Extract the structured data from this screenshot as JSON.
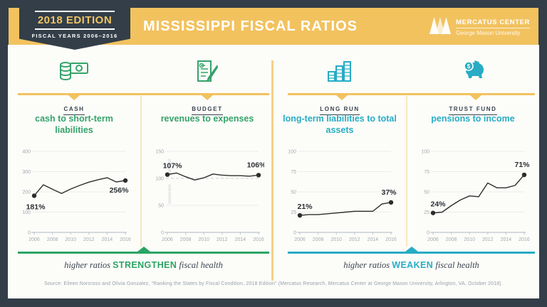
{
  "header": {
    "edition_badge": {
      "title": "2018 EDITION",
      "subtitle": "FISCAL YEARS 2006–2016"
    },
    "title": "MISSISSIPPI FISCAL RATIOS",
    "logo": {
      "name": "MERCATUS CENTER",
      "org": "George Mason University"
    }
  },
  "panels": [
    {
      "icon": "cash-coins-icon",
      "category": "CASH",
      "subtitle": "cash to short-term liabilities",
      "accent": "#35A36B"
    },
    {
      "icon": "budget-document-icon",
      "category": "BUDGET",
      "subtitle": "revenues to expenses",
      "accent": "#35A36B"
    },
    {
      "icon": "long-run-stacks-icon",
      "category": "LONG RUN",
      "subtitle": "long-term liabilities to total assets",
      "accent": "#27ACC4"
    },
    {
      "icon": "piggy-bank-icon",
      "category": "TRUST FUND",
      "subtitle": "pensions to income",
      "accent": "#27ACC4"
    }
  ],
  "chart_data": [
    {
      "type": "line",
      "title": "cash to short-term liabilities",
      "x": [
        2006,
        2007,
        2008,
        2009,
        2010,
        2011,
        2012,
        2013,
        2014,
        2015,
        2016
      ],
      "values": [
        181,
        235,
        213,
        192,
        214,
        232,
        248,
        260,
        270,
        249,
        256
      ],
      "ylim": [
        0,
        400
      ],
      "yticks": [
        0,
        100,
        200,
        300,
        400
      ],
      "xticks": [
        2006,
        2008,
        2010,
        2012,
        2014,
        2016
      ],
      "grid": true,
      "start_label": {
        "text": "181%",
        "position": "below"
      },
      "end_label": {
        "text": "256%",
        "position": "below"
      }
    },
    {
      "type": "line",
      "title": "revenues to expenses",
      "x": [
        2006,
        2007,
        2008,
        2009,
        2010,
        2011,
        2012,
        2013,
        2014,
        2015,
        2016
      ],
      "values": [
        107,
        110,
        103,
        97,
        101,
        108,
        106,
        105,
        105,
        104,
        106
      ],
      "ylim": [
        0,
        150
      ],
      "yticks": [
        0,
        50,
        100,
        150
      ],
      "xticks": [
        2006,
        2008,
        2010,
        2012,
        2014,
        2016
      ],
      "grid": true,
      "reference_line": {
        "value": 100,
        "style": "dashed",
        "label_above": "solvent",
        "label_below": "insolvent"
      },
      "start_label": {
        "text": "107%",
        "position": "above"
      },
      "end_label": {
        "text": "106%",
        "position": "above"
      }
    },
    {
      "type": "line",
      "title": "long-term liabilities to total assets",
      "x": [
        2006,
        2007,
        2008,
        2009,
        2010,
        2011,
        2012,
        2013,
        2014,
        2015,
        2016
      ],
      "values": [
        21,
        22,
        22,
        23,
        24,
        25,
        26,
        26,
        26,
        35,
        37
      ],
      "ylim": [
        0,
        100
      ],
      "yticks": [
        0,
        25,
        50,
        75,
        100
      ],
      "xticks": [
        2006,
        2008,
        2010,
        2012,
        2014,
        2016
      ],
      "grid": true,
      "start_label": {
        "text": "21%",
        "position": "above"
      },
      "end_label": {
        "text": "37%",
        "position": "above"
      }
    },
    {
      "type": "line",
      "title": "pensions to income",
      "x": [
        2006,
        2007,
        2008,
        2009,
        2010,
        2011,
        2012,
        2013,
        2014,
        2015,
        2016
      ],
      "values": [
        24,
        25,
        33,
        40,
        45,
        44,
        61,
        55,
        55,
        58,
        71
      ],
      "ylim": [
        0,
        100
      ],
      "yticks": [
        0,
        25,
        50,
        75,
        100
      ],
      "xticks": [
        2006,
        2008,
        2010,
        2012,
        2014,
        2016
      ],
      "grid": true,
      "start_label": {
        "text": "24%",
        "position": "above"
      },
      "end_label": {
        "text": "71%",
        "position": "above"
      }
    }
  ],
  "footer": {
    "left": {
      "pre": "higher ratios ",
      "emphasis": "STRENGTHEN",
      "post": " fiscal health"
    },
    "right": {
      "pre": "higher ratios ",
      "emphasis": "WEAKEN",
      "post": " fiscal health"
    }
  },
  "source": "Source: Eileen Norcross and Olivia Gonzalez, “Ranking the States by Fiscal Condition, 2018 Edition” (Mercatus Research, Mercatus Center at George Mason University, Arlington, VA, October 2018).",
  "colors": {
    "navy": "#333E48",
    "gold": "#F2C25F",
    "green": "#35A36B",
    "teal": "#27ACC4",
    "line": "#2E2E2E"
  }
}
